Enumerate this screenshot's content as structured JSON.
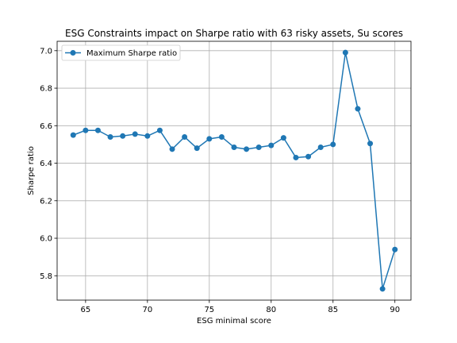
{
  "chart_data": {
    "type": "line",
    "title": "ESG Constraints impact on Sharpe ratio with 63 risky assets, Su scores",
    "xlabel": "ESG minimal score",
    "ylabel": "Sharpe ratio",
    "xlim": [
      62.7,
      91.3
    ],
    "ylim": [
      5.67,
      7.05
    ],
    "xticks": [
      65,
      70,
      75,
      80,
      85,
      90
    ],
    "yticks": [
      5.8,
      6.0,
      6.2,
      6.4,
      6.6,
      6.8,
      7.0
    ],
    "xtick_labels": [
      "65",
      "70",
      "75",
      "80",
      "85",
      "90"
    ],
    "ytick_labels": [
      "5.8",
      "6.0",
      "6.2",
      "6.4",
      "6.6",
      "6.8",
      "7.0"
    ],
    "grid": true,
    "legend_position": "top-left",
    "series": [
      {
        "name": "Maximum Sharpe ratio",
        "color": "#1f77b4",
        "x": [
          64,
          65,
          66,
          67,
          68,
          69,
          70,
          71,
          72,
          73,
          74,
          75,
          76,
          77,
          78,
          79,
          80,
          81,
          82,
          83,
          84,
          85,
          86,
          87,
          88,
          89,
          90
        ],
        "y": [
          6.55,
          6.575,
          6.575,
          6.54,
          6.545,
          6.555,
          6.545,
          6.575,
          6.475,
          6.54,
          6.48,
          6.53,
          6.54,
          6.485,
          6.475,
          6.485,
          6.495,
          6.535,
          6.43,
          6.435,
          6.485,
          6.5,
          6.99,
          6.69,
          6.505,
          5.73,
          5.94
        ]
      }
    ]
  }
}
